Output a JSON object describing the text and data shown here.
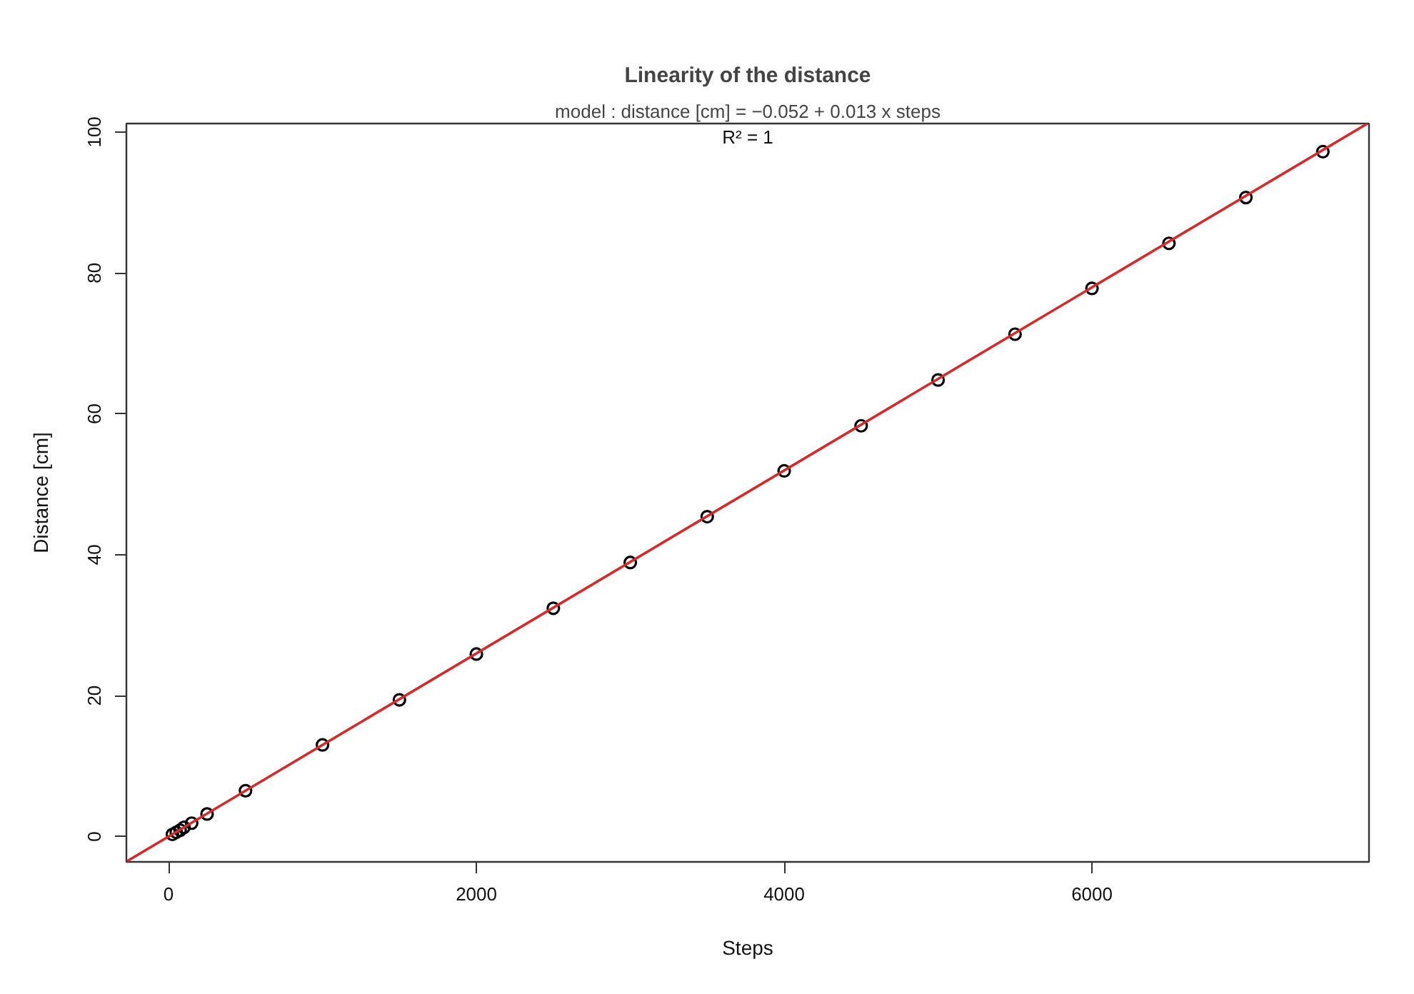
{
  "chart_data": {
    "type": "scatter",
    "title": "Linearity of the distance",
    "subtitle": "model : distance [cm] = −0.052 + 0.013 x steps",
    "annotations": [
      "R² = 1"
    ],
    "xlabel": "Steps",
    "ylabel": "Distance [cm]",
    "xlim": [
      -274,
      7800
    ],
    "ylim": [
      -3.6,
      101.2
    ],
    "xticks": [
      0,
      2000,
      4000,
      6000
    ],
    "yticks": [
      0,
      20,
      40,
      60,
      80,
      100
    ],
    "grid": false,
    "series": [
      {
        "marker": "circle",
        "color": "#000000",
        "x": [
          25,
          50,
          75,
          100,
          150,
          250,
          500,
          1000,
          1500,
          2000,
          2500,
          3000,
          3500,
          4000,
          4500,
          5000,
          5500,
          6000,
          6500,
          7000,
          7500
        ],
        "values": [
          0.3,
          0.6,
          0.9,
          1.3,
          1.9,
          3.2,
          6.5,
          13.0,
          19.4,
          25.9,
          32.4,
          38.9,
          45.4,
          51.9,
          58.3,
          64.8,
          71.3,
          77.8,
          84.2,
          90.7,
          97.2
        ]
      },
      {
        "type": "line",
        "marker": "none",
        "line_style": "solid",
        "color": "#d42a2a",
        "x": [
          -270,
          7790
        ],
        "values": [
          -3.5,
          101.2
        ]
      }
    ]
  }
}
